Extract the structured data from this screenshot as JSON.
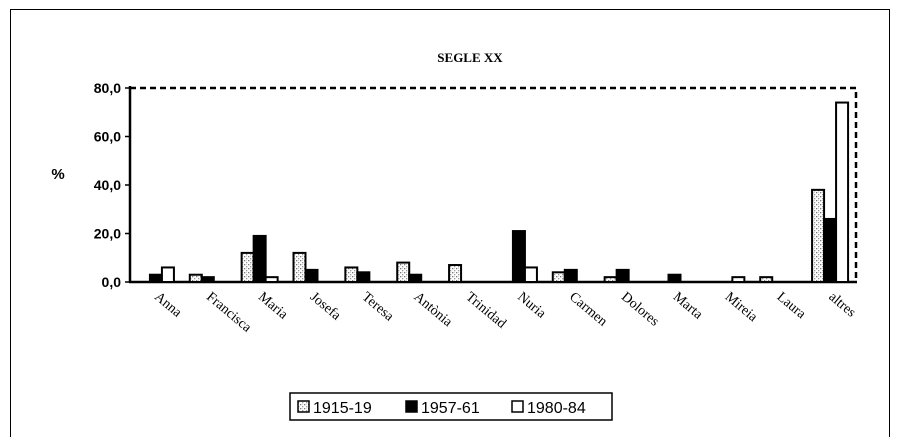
{
  "chart_data": {
    "type": "bar",
    "title": "SEGLE XX",
    "xlabel": "",
    "ylabel": "%",
    "ylim": [
      0,
      80
    ],
    "yticks": [
      "0,0",
      "20,0",
      "40,0",
      "60,0",
      "80,0"
    ],
    "ytick_values": [
      0,
      20,
      40,
      60,
      80
    ],
    "categories": [
      "Anna",
      "Francisca",
      "Maria",
      "Josefa",
      "Teresa",
      "Antònia",
      "Trinidad",
      "Nuria",
      "Carmen",
      "Dolores",
      "Marta",
      "Mireia",
      "Laura",
      "altres"
    ],
    "series": [
      {
        "name": "1915-19",
        "values": [
          0,
          3,
          12,
          12,
          6,
          8,
          7,
          0,
          4,
          2,
          0,
          0,
          2,
          38
        ],
        "pattern": "dotted"
      },
      {
        "name": "1957-61",
        "values": [
          3,
          2,
          19,
          5,
          4,
          3,
          0,
          21,
          5,
          5,
          3,
          0,
          0,
          26
        ],
        "pattern": "solid"
      },
      {
        "name": "1980-84",
        "values": [
          6,
          0,
          2,
          0,
          0,
          0,
          0,
          6,
          0,
          0,
          0,
          2,
          0,
          74
        ],
        "pattern": "empty"
      }
    ],
    "legend_position": "bottom",
    "grid": false
  },
  "colors": {
    "ink": "#000000",
    "background": "#ffffff",
    "stipple": "#8a8a8a"
  }
}
